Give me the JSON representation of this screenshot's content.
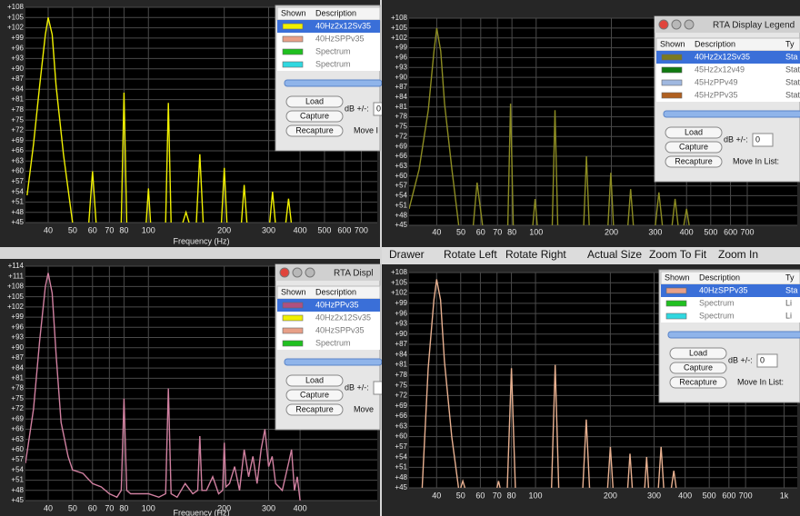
{
  "toolbar": [
    "Drawer",
    "Rotate Left",
    "Rotate Right",
    "Actual Size",
    "Zoom To Fit",
    "Zoom In"
  ],
  "panels": [
    {
      "line_color": "#f0f000",
      "xlog": true,
      "grid": true,
      "xlabel": "Frequency (Hz)",
      "xlim": [
        32.5,
        810
      ],
      "xticks": [
        40,
        50,
        60,
        70,
        80,
        100,
        200,
        300,
        400,
        500,
        600,
        700
      ],
      "ylim": [
        45,
        108
      ],
      "yticks": [
        {
          "value": 45,
          "label": "+45"
        },
        {
          "value": 48,
          "label": "+48"
        },
        {
          "value": 51,
          "label": "+51"
        },
        {
          "value": 54,
          "label": "+54"
        },
        {
          "value": 57,
          "label": "+57"
        },
        {
          "value": 60,
          "label": "+60"
        },
        {
          "value": 63,
          "label": "+63"
        },
        {
          "value": 66,
          "label": "+66"
        },
        {
          "value": 69,
          "label": "+69"
        },
        {
          "value": 72,
          "label": "+72"
        },
        {
          "value": 75,
          "label": "+75"
        },
        {
          "value": 78,
          "label": "+78"
        },
        {
          "value": 81,
          "label": "+81"
        },
        {
          "value": 84,
          "label": "+84"
        },
        {
          "value": 87,
          "label": "+87"
        },
        {
          "value": 90,
          "label": "+90"
        },
        {
          "value": 93,
          "label": "+93"
        },
        {
          "value": 96,
          "label": "+96"
        },
        {
          "value": 99,
          "label": "+99"
        },
        {
          "value": 102,
          "label": "+102"
        },
        {
          "value": 105,
          "label": "+105"
        },
        {
          "value": 108,
          "label": "+108"
        }
      ],
      "spectrum": {
        "x": [
          33,
          35,
          37,
          39,
          40,
          41.5,
          43,
          46,
          50,
          55,
          58,
          60,
          62,
          70,
          78,
          80,
          82,
          90,
          98,
          100,
          102,
          110,
          117,
          120,
          123,
          130,
          137,
          141,
          145,
          150,
          155,
          160,
          165,
          180,
          195,
          200,
          205,
          220,
          234,
          240,
          246,
          270,
          303,
          311,
          319,
          340,
          351,
          360,
          369
        ],
        "values": [
          53,
          68,
          85,
          100,
          105,
          100,
          85,
          65,
          45,
          null,
          45,
          60,
          45,
          null,
          45,
          83,
          45,
          null,
          45,
          55,
          45,
          null,
          45,
          80,
          45,
          null,
          45,
          48,
          45,
          null,
          45,
          65,
          45,
          null,
          45,
          61,
          45,
          null,
          45,
          56,
          45,
          null,
          45,
          54,
          45,
          null,
          45,
          52,
          45
        ]
      },
      "legend": {
        "columns": [
          "Shown",
          "Description"
        ],
        "rows": [
          {
            "color": "#f0f000",
            "name": "40Hz2x12Sv35",
            "selected": true
          },
          {
            "color": "#e8a088",
            "name": "40HzSPPv35"
          },
          {
            "color": "#20c020",
            "name": "Spectrum"
          },
          {
            "color": "#30d8e0",
            "name": "Spectrum"
          }
        ],
        "buttons": [
          "Load",
          "Capture",
          "Recapture"
        ],
        "db_label": "dB +/-:",
        "db_value": "0",
        "move_label": "Move I"
      }
    },
    {
      "line_color": "#8c8c22",
      "xlog": true,
      "grid": true,
      "xlim": [
        31,
        1110
      ],
      "xticks": [
        40,
        50,
        60,
        70,
        80,
        100,
        200,
        300,
        400,
        500,
        600,
        700
      ],
      "ylim": [
        45,
        108
      ],
      "yticks": [
        {
          "value": 45,
          "label": "+45"
        },
        {
          "value": 48,
          "label": "+48"
        },
        {
          "value": 51,
          "label": "+51"
        },
        {
          "value": 54,
          "label": "+54"
        },
        {
          "value": 57,
          "label": "+57"
        },
        {
          "value": 60,
          "label": "+60"
        },
        {
          "value": 63,
          "label": "+63"
        },
        {
          "value": 66,
          "label": "+66"
        },
        {
          "value": 69,
          "label": "+69"
        },
        {
          "value": 72,
          "label": "+72"
        },
        {
          "value": 75,
          "label": "+75"
        },
        {
          "value": 78,
          "label": "+78"
        },
        {
          "value": 81,
          "label": "+81"
        },
        {
          "value": 84,
          "label": "+84"
        },
        {
          "value": 87,
          "label": "+87"
        },
        {
          "value": 90,
          "label": "+90"
        },
        {
          "value": 93,
          "label": "+93"
        },
        {
          "value": 96,
          "label": "+96"
        },
        {
          "value": 99,
          "label": "+99"
        },
        {
          "value": 102,
          "label": "+102"
        },
        {
          "value": 105,
          "label": "+105"
        },
        {
          "value": 108,
          "label": "+108"
        }
      ],
      "spectrum": {
        "x": [
          31,
          34,
          37,
          39,
          40,
          41.5,
          43,
          46,
          49,
          53,
          56,
          58,
          61,
          70,
          77,
          79,
          81,
          90,
          97,
          99,
          101,
          110,
          116,
          119,
          122,
          130,
          155,
          159,
          163,
          180,
          194,
          199,
          204,
          220,
          233,
          239,
          245,
          270,
          300,
          310,
          320,
          340,
          350,
          360,
          370,
          380,
          390,
          400,
          410
        ],
        "values": [
          50,
          62,
          80,
          98,
          105,
          98,
          82,
          62,
          45,
          null,
          45,
          58,
          45,
          null,
          45,
          82,
          45,
          null,
          45,
          53,
          45,
          null,
          45,
          80,
          45,
          null,
          45,
          66,
          45,
          null,
          45,
          61,
          45,
          null,
          45,
          56,
          45,
          null,
          45,
          55,
          45,
          null,
          45,
          53,
          45,
          null,
          45,
          50,
          45
        ]
      },
      "legend": {
        "title": "RTA Display Legend",
        "columns": [
          "Shown",
          "Description",
          "Ty"
        ],
        "rows": [
          {
            "color": "#7a7a20",
            "name": "40Hz2x12Sv35",
            "type": "Sta",
            "selected": true
          },
          {
            "color": "#107a10",
            "name": "45Hz2x12v49",
            "type": "Stat"
          },
          {
            "color": "#a0b8e0",
            "name": "45HzPPv49",
            "type": "Stat"
          },
          {
            "color": "#b06020",
            "name": "45HzPPv35",
            "type": "Stat"
          }
        ],
        "buttons": [
          "Load",
          "Capture",
          "Recapture"
        ],
        "db_label": "dB +/-:",
        "db_value": "0",
        "move_label": "Move In List:"
      }
    },
    {
      "line_color": "#d080a0",
      "xlog": true,
      "grid": true,
      "xlabel": "Frequency (Hz)",
      "xlim": [
        32.5,
        810
      ],
      "xticks": [
        40,
        50,
        60,
        70,
        80,
        100,
        200,
        300,
        400
      ],
      "ylim": [
        45,
        114
      ],
      "yticks": [
        {
          "value": 45,
          "label": "+45"
        },
        {
          "value": 48,
          "label": "+48"
        },
        {
          "value": 51,
          "label": "+51"
        },
        {
          "value": 54,
          "label": "+54"
        },
        {
          "value": 57,
          "label": "+57"
        },
        {
          "value": 60,
          "label": "+60"
        },
        {
          "value": 63,
          "label": "+63"
        },
        {
          "value": 66,
          "label": "+66"
        },
        {
          "value": 69,
          "label": "+69"
        },
        {
          "value": 72,
          "label": "+72"
        },
        {
          "value": 75,
          "label": "+75"
        },
        {
          "value": 78,
          "label": "+78"
        },
        {
          "value": 81,
          "label": "+81"
        },
        {
          "value": 84,
          "label": "+84"
        },
        {
          "value": 87,
          "label": "+87"
        },
        {
          "value": 90,
          "label": "+90"
        },
        {
          "value": 93,
          "label": "+93"
        },
        {
          "value": 96,
          "label": "+96"
        },
        {
          "value": 99,
          "label": "+99"
        },
        {
          "value": 102,
          "label": "+102"
        },
        {
          "value": 105,
          "label": "+105"
        },
        {
          "value": 108,
          "label": "+108"
        },
        {
          "value": 111,
          "label": "+111"
        },
        {
          "value": 114,
          "label": "+114"
        }
      ],
      "spectrum": {
        "x": [
          32.5,
          35,
          37,
          39,
          40,
          41.5,
          43,
          45,
          48,
          50,
          55,
          60,
          65,
          70,
          75,
          78,
          80,
          82,
          85,
          90,
          100,
          110,
          117,
          120,
          123,
          130,
          140,
          150,
          157,
          160,
          163,
          170,
          180,
          190,
          197,
          200,
          203,
          210,
          220,
          230,
          240,
          250,
          260,
          270,
          280,
          290,
          300,
          310,
          320,
          340,
          360,
          370,
          380,
          390,
          400
        ],
        "values": [
          56,
          72,
          92,
          108,
          112,
          106,
          88,
          68,
          58,
          54,
          53,
          50,
          49,
          47,
          46,
          48,
          75,
          48,
          47,
          47,
          47,
          46,
          47,
          78,
          47,
          46,
          50,
          47,
          48,
          64,
          48,
          48,
          52,
          47,
          48,
          62,
          49,
          50,
          55,
          48,
          60,
          52,
          58,
          50,
          60,
          66,
          55,
          58,
          50,
          48,
          56,
          60,
          48,
          52,
          45
        ]
      },
      "legend": {
        "title": "RTA Displ",
        "columns": [
          "Shown",
          "Description"
        ],
        "rows": [
          {
            "color": "#b05080",
            "name": "40HzPPv35",
            "selected": true
          },
          {
            "color": "#f0f000",
            "name": "40Hz2x12Sv35"
          },
          {
            "color": "#e8a088",
            "name": "40HzSPPv35"
          },
          {
            "color": "#20c020",
            "name": "Spectrum"
          }
        ],
        "buttons": [
          "Load",
          "Capture",
          "Recapture"
        ],
        "db_label": "dB +/-:",
        "db_value": "",
        "move_label": "Move"
      }
    },
    {
      "line_color": "#e8b090",
      "xlog": true,
      "grid": true,
      "xlim": [
        31,
        1130
      ],
      "xticks": [
        40,
        50,
        60,
        70,
        80,
        100,
        200,
        300,
        400,
        500,
        600,
        700,
        {
          "value": 1000,
          "label": "1k"
        }
      ],
      "ylim": [
        45,
        108
      ],
      "yticks": [
        {
          "value": 45,
          "label": "+45"
        },
        {
          "value": 48,
          "label": "+48"
        },
        {
          "value": 51,
          "label": "+51"
        },
        {
          "value": 54,
          "label": "+54"
        },
        {
          "value": 57,
          "label": "+57"
        },
        {
          "value": 60,
          "label": "+60"
        },
        {
          "value": 63,
          "label": "+63"
        },
        {
          "value": 66,
          "label": "+66"
        },
        {
          "value": 69,
          "label": "+69"
        },
        {
          "value": 72,
          "label": "+72"
        },
        {
          "value": 75,
          "label": "+75"
        },
        {
          "value": 78,
          "label": "+78"
        },
        {
          "value": 81,
          "label": "+81"
        },
        {
          "value": 84,
          "label": "+84"
        },
        {
          "value": 87,
          "label": "+87"
        },
        {
          "value": 90,
          "label": "+90"
        },
        {
          "value": 93,
          "label": "+93"
        },
        {
          "value": 96,
          "label": "+96"
        },
        {
          "value": 99,
          "label": "+99"
        },
        {
          "value": 102,
          "label": "+102"
        },
        {
          "value": 105,
          "label": "+105"
        },
        {
          "value": 108,
          "label": "+108"
        }
      ],
      "spectrum": {
        "x": [
          35,
          37,
          39,
          40,
          41.5,
          43,
          46,
          49,
          49.5,
          50,
          51,
          52,
          60,
          70,
          71,
          72,
          75,
          77,
          80,
          83,
          100,
          116,
          120,
          124,
          140,
          155,
          160,
          165,
          180,
          195,
          200,
          205,
          220,
          235,
          240,
          245,
          260,
          275,
          280,
          285,
          300,
          312,
          320,
          328,
          340,
          352,
          360,
          368
        ],
        "values": [
          45,
          80,
          100,
          106,
          100,
          82,
          60,
          45,
          null,
          45,
          47,
          45,
          null,
          45,
          47,
          45,
          null,
          45,
          80,
          45,
          null,
          45,
          81,
          45,
          null,
          45,
          65,
          45,
          null,
          45,
          57,
          45,
          null,
          45,
          55,
          45,
          null,
          45,
          54,
          45,
          null,
          45,
          57,
          45,
          null,
          45,
          50,
          45
        ]
      },
      "legend": {
        "columns": [
          "Shown",
          "Description",
          "Ty"
        ],
        "rows": [
          {
            "color": "#e8a088",
            "name": "40HzSPPv35",
            "type": "Sta",
            "selected": true
          },
          {
            "color": "#20c020",
            "name": "Spectrum",
            "type": "Li"
          },
          {
            "color": "#30d8e0",
            "name": "Spectrum",
            "type": "Li"
          }
        ],
        "buttons": [
          "Load",
          "Capture",
          "Recapture"
        ],
        "db_label": "dB +/-:",
        "db_value": "0",
        "move_label": "Move In List:"
      }
    }
  ]
}
